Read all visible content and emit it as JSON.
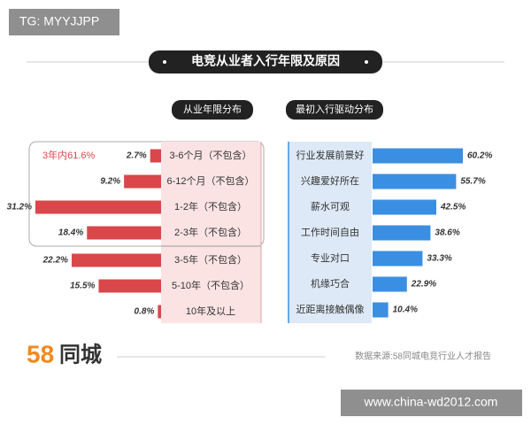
{
  "watermark": "TG: MYYJJPP",
  "title": "电竞从业者入行年限及原因",
  "annotation": "3年内61.6%",
  "logo": {
    "number": "58",
    "name": "同城"
  },
  "source": "数据来源:58同城电竞行业人才报告",
  "website": "www.china-wd2012.com",
  "chart_data": [
    {
      "type": "bar",
      "title": "从业年限分布",
      "categories": [
        "3-6个月（不包含）",
        "6-12个月（不包含）",
        "1-2年（不包含）",
        "2-3年（不包含）",
        "3-5年（不包含）",
        "5-10年（不包含）",
        "10年及以上"
      ],
      "values": [
        2.7,
        9.2,
        31.2,
        18.4,
        22.2,
        15.5,
        0.8
      ],
      "value_labels": [
        "2.7%",
        "9.2%",
        "31.2%",
        "18.4%",
        "22.2%",
        "15.5%",
        "0.8%"
      ],
      "color": "#d9474a"
    },
    {
      "type": "bar",
      "title": "最初入行驱动分布",
      "categories": [
        "行业发展前景好",
        "兴趣爱好所在",
        "薪水可观",
        "工作时间自由",
        "专业对口",
        "机缘巧合",
        "近距离接触偶像"
      ],
      "values": [
        60.2,
        55.7,
        42.5,
        38.6,
        33.3,
        22.9,
        10.4
      ],
      "value_labels": [
        "60.2%",
        "55.7%",
        "42.5%",
        "38.6%",
        "33.3%",
        "22.9%",
        "10.4%"
      ],
      "color": "#3b8fe3"
    }
  ]
}
